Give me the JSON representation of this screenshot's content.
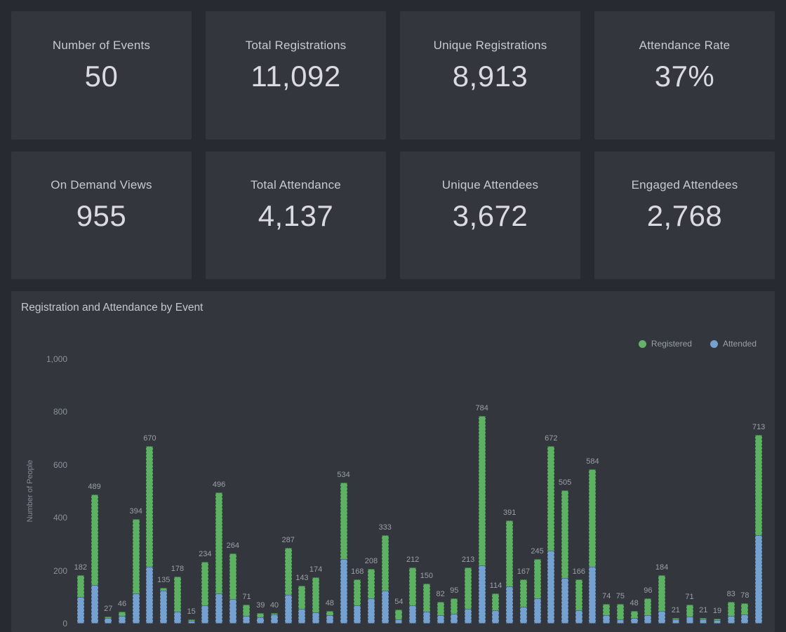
{
  "cards": [
    {
      "label": "Number of Events",
      "value": "50"
    },
    {
      "label": "Total Registrations",
      "value": "11,092"
    },
    {
      "label": "Unique Registrations",
      "value": "8,913"
    },
    {
      "label": "Attendance Rate",
      "value": "37%"
    },
    {
      "label": "On Demand Views",
      "value": "955"
    },
    {
      "label": "Total Attendance",
      "value": "4,137"
    },
    {
      "label": "Unique Attendees",
      "value": "3,672"
    },
    {
      "label": "Engaged Attendees",
      "value": "2,768"
    }
  ],
  "chart": {
    "title": "Registration and Attendance by Event",
    "ylabel": "Number of People",
    "yticks": [
      {
        "label": "0",
        "value": 0
      },
      {
        "label": "200",
        "value": 200
      },
      {
        "label": "400",
        "value": 400
      },
      {
        "label": "600",
        "value": 600
      },
      {
        "label": "800",
        "value": 800
      },
      {
        "label": "1,000",
        "value": 1000
      }
    ],
    "legend": [
      {
        "label": "Registered",
        "color": "#65b369"
      },
      {
        "label": "Attended",
        "color": "#74a1d0"
      }
    ],
    "colors": {
      "registered_bar": "#5db163",
      "attended_bar": "#74a1d0",
      "panel_bg": "#33363d",
      "page_bg": "#272a31"
    }
  },
  "chart_data": {
    "type": "bar",
    "style": "overlay (attended bar drawn over lower part of registered bar)",
    "title": "Registration and Attendance by Event",
    "xlabel": "",
    "ylabel": "Number of People",
    "ylim": [
      0,
      1000
    ],
    "grid": false,
    "legend_position": "top-right",
    "bar_value_labels": "registered value shown above each bar",
    "series": [
      {
        "name": "Registered",
        "values": [
          182,
          489,
          27,
          46,
          394,
          670,
          135,
          178,
          15,
          234,
          496,
          264,
          71,
          39,
          40,
          287,
          143,
          174,
          48,
          534,
          168,
          208,
          333,
          54,
          212,
          150,
          82,
          95,
          213,
          784,
          114,
          391,
          167,
          245,
          672,
          505,
          166,
          584,
          74,
          75,
          48,
          96,
          184,
          21,
          71,
          21,
          19,
          83,
          78,
          713
        ]
      },
      {
        "name": "Attended (estimated from bar heights)",
        "values": [
          100,
          145,
          21,
          30,
          114,
          215,
          126,
          45,
          10,
          70,
          114,
          94,
          30,
          25,
          35,
          108,
          55,
          42,
          33,
          245,
          70,
          95,
          125,
          17,
          68,
          45,
          33,
          38,
          55,
          220,
          50,
          140,
          65,
          95,
          275,
          173,
          50,
          215,
          33,
          16,
          21,
          32,
          49,
          17,
          27,
          15,
          13,
          28,
          35,
          333
        ]
      }
    ]
  }
}
